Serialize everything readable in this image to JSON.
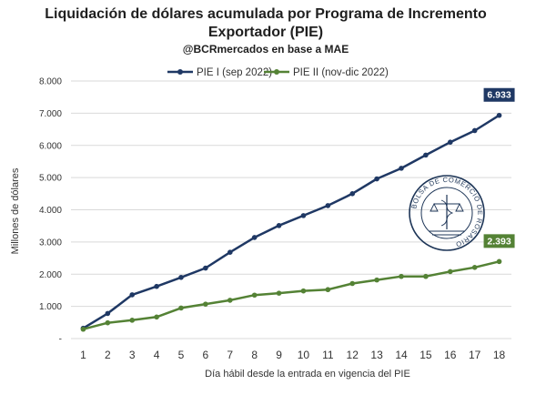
{
  "colors": {
    "series1": "#1f3864",
    "series2": "#548235",
    "grid": "#d9d9d9",
    "seal": "#1d3557"
  },
  "seal_text": "BOLSA DE COMERCIO DE ROSARIO",
  "chart_data": {
    "type": "line",
    "title_lines": [
      "Liquidación de dólares acumulada por Programa de Incremento",
      "Exportador (PIE)"
    ],
    "subtitle": "@BCRmercados en base a MAE",
    "xlabel": "Día hábil desde la entrada en vigencia del PIE",
    "ylabel": "Millones de dólares",
    "ylim": [
      0,
      8000
    ],
    "yticks": [
      "-",
      "1.000",
      "2.000",
      "3.000",
      "4.000",
      "5.000",
      "6.000",
      "7.000",
      "8.000"
    ],
    "x": [
      "1",
      "2",
      "3",
      "4",
      "5",
      "6",
      "7",
      "8",
      "9",
      "10",
      "11",
      "12",
      "13",
      "14",
      "15",
      "16",
      "17",
      "18"
    ],
    "grid": true,
    "legend_position": "top",
    "series": [
      {
        "name": "PIE I (sep 2022)",
        "values": [
          320,
          780,
          1360,
          1620,
          1900,
          2190,
          2680,
          3140,
          3510,
          3820,
          4130,
          4500,
          4960,
          5290,
          5700,
          6100,
          6460,
          6933
        ],
        "end_label": "6.933"
      },
      {
        "name": "PIE II (nov-dic 2022)",
        "values": [
          290,
          490,
          570,
          670,
          950,
          1070,
          1190,
          1350,
          1410,
          1480,
          1520,
          1710,
          1820,
          1930,
          1930,
          2080,
          2210,
          2393
        ],
        "end_label": "2.393"
      }
    ]
  }
}
